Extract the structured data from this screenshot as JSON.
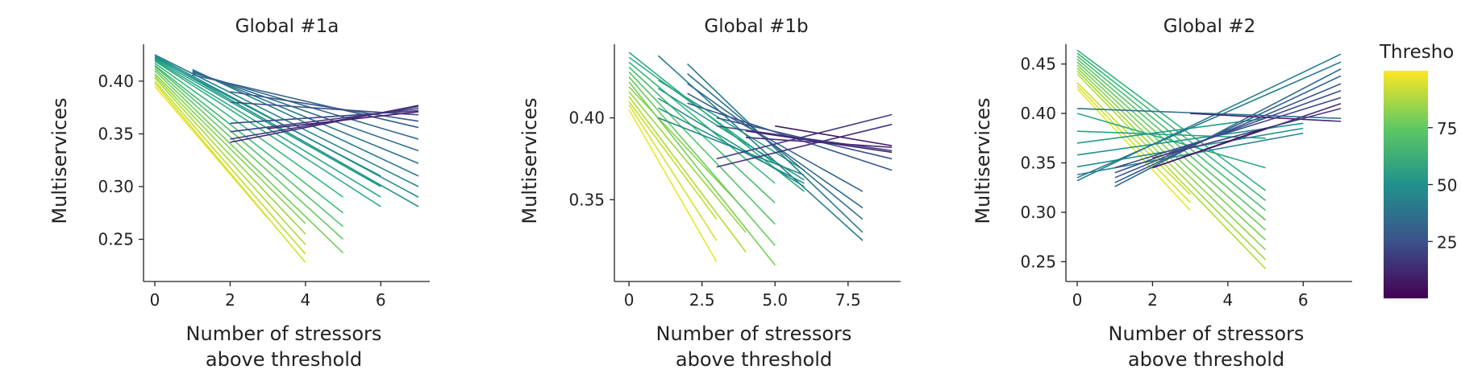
{
  "chart_data": [
    {
      "type": "line",
      "title": "Global #1a",
      "xlabel": [
        "Number of stressors",
        "above threshold"
      ],
      "ylabel": "Multiservices",
      "xlim": [
        -0.3,
        7.3
      ],
      "ylim": [
        0.21,
        0.435
      ],
      "xticks": [
        "0",
        "2",
        "4",
        "6"
      ],
      "xtick_values": [
        0,
        2,
        4,
        6
      ],
      "yticks": [
        "0.25",
        "0.30",
        "0.35",
        "0.40"
      ],
      "ytick_values": [
        0.25,
        0.3,
        0.35,
        0.4
      ],
      "series": [
        {
          "t": 0.97,
          "x": [
            0,
            3
          ],
          "y": [
            0.395,
            0.27
          ]
        },
        {
          "t": 0.93,
          "x": [
            0,
            4
          ],
          "y": [
            0.398,
            0.228
          ]
        },
        {
          "t": 0.9,
          "x": [
            0,
            4
          ],
          "y": [
            0.4,
            0.236
          ]
        },
        {
          "t": 0.87,
          "x": [
            0,
            4
          ],
          "y": [
            0.403,
            0.245
          ]
        },
        {
          "t": 0.84,
          "x": [
            0,
            4
          ],
          "y": [
            0.405,
            0.255
          ]
        },
        {
          "t": 0.81,
          "x": [
            0,
            4
          ],
          "y": [
            0.407,
            0.265
          ]
        },
        {
          "t": 0.78,
          "x": [
            0,
            5
          ],
          "y": [
            0.41,
            0.237
          ]
        },
        {
          "t": 0.75,
          "x": [
            0,
            5
          ],
          "y": [
            0.412,
            0.25
          ]
        },
        {
          "t": 0.72,
          "x": [
            0,
            5
          ],
          "y": [
            0.414,
            0.262
          ]
        },
        {
          "t": 0.69,
          "x": [
            0,
            5
          ],
          "y": [
            0.415,
            0.275
          ]
        },
        {
          "t": 0.66,
          "x": [
            0,
            5
          ],
          "y": [
            0.417,
            0.29
          ]
        },
        {
          "t": 0.63,
          "x": [
            0,
            6
          ],
          "y": [
            0.419,
            0.281
          ]
        },
        {
          "t": 0.6,
          "x": [
            0,
            6
          ],
          "y": [
            0.42,
            0.29
          ]
        },
        {
          "t": 0.57,
          "x": [
            0,
            6
          ],
          "y": [
            0.421,
            0.3
          ]
        },
        {
          "t": 0.54,
          "x": [
            0,
            6
          ],
          "y": [
            0.422,
            0.31
          ]
        },
        {
          "t": 0.51,
          "x": [
            0,
            7
          ],
          "y": [
            0.423,
            0.281
          ]
        },
        {
          "t": 0.48,
          "x": [
            0,
            7
          ],
          "y": [
            0.424,
            0.29
          ]
        },
        {
          "t": 0.45,
          "x": [
            0,
            7
          ],
          "y": [
            0.425,
            0.3
          ]
        },
        {
          "t": 0.42,
          "x": [
            1,
            7
          ],
          "y": [
            0.411,
            0.31
          ]
        },
        {
          "t": 0.39,
          "x": [
            1,
            7
          ],
          "y": [
            0.41,
            0.322
          ]
        },
        {
          "t": 0.36,
          "x": [
            1,
            7
          ],
          "y": [
            0.409,
            0.334
          ]
        },
        {
          "t": 0.33,
          "x": [
            1,
            7
          ],
          "y": [
            0.408,
            0.345
          ]
        },
        {
          "t": 0.3,
          "x": [
            1,
            7
          ],
          "y": [
            0.406,
            0.356
          ]
        },
        {
          "t": 0.27,
          "x": [
            2,
            7
          ],
          "y": [
            0.39,
            0.362
          ]
        },
        {
          "t": 0.24,
          "x": [
            2,
            7
          ],
          "y": [
            0.38,
            0.368
          ]
        },
        {
          "t": 0.21,
          "x": [
            2,
            7
          ],
          "y": [
            0.36,
            0.372
          ]
        },
        {
          "t": 0.18,
          "x": [
            2,
            7
          ],
          "y": [
            0.352,
            0.374
          ]
        },
        {
          "t": 0.15,
          "x": [
            2,
            7
          ],
          "y": [
            0.345,
            0.376
          ]
        },
        {
          "t": 0.12,
          "x": [
            2,
            7
          ],
          "y": [
            0.342,
            0.377
          ]
        },
        {
          "t": 0.08,
          "x": [
            3,
            7
          ],
          "y": [
            0.355,
            0.371
          ]
        }
      ]
    },
    {
      "type": "line",
      "title": "Global #1b",
      "xlabel": [
        "Number of stressors",
        "above threshold"
      ],
      "ylabel": "Multiservices",
      "xlim": [
        -0.5,
        9.3
      ],
      "ylim": [
        0.3,
        0.445
      ],
      "xticks": [
        "0",
        "2.5",
        "5.0",
        "7.5"
      ],
      "xtick_values": [
        0,
        2.5,
        5.0,
        7.5
      ],
      "yticks": [
        "0.35",
        "0.40"
      ],
      "ytick_values": [
        0.35,
        0.4
      ],
      "series": [
        {
          "t": 0.97,
          "x": [
            0,
            3
          ],
          "y": [
            0.405,
            0.312
          ]
        },
        {
          "t": 0.94,
          "x": [
            0,
            3
          ],
          "y": [
            0.408,
            0.325
          ]
        },
        {
          "t": 0.91,
          "x": [
            0,
            3
          ],
          "y": [
            0.41,
            0.338
          ]
        },
        {
          "t": 0.88,
          "x": [
            0,
            4
          ],
          "y": [
            0.413,
            0.318
          ]
        },
        {
          "t": 0.85,
          "x": [
            0,
            4
          ],
          "y": [
            0.416,
            0.33
          ]
        },
        {
          "t": 0.82,
          "x": [
            0,
            4
          ],
          "y": [
            0.419,
            0.343
          ]
        },
        {
          "t": 0.79,
          "x": [
            0,
            5
          ],
          "y": [
            0.422,
            0.31
          ]
        },
        {
          "t": 0.76,
          "x": [
            0,
            5
          ],
          "y": [
            0.425,
            0.322
          ]
        },
        {
          "t": 0.73,
          "x": [
            0,
            5
          ],
          "y": [
            0.428,
            0.335
          ]
        },
        {
          "t": 0.7,
          "x": [
            0,
            5
          ],
          "y": [
            0.431,
            0.348
          ]
        },
        {
          "t": 0.67,
          "x": [
            0,
            5
          ],
          "y": [
            0.434,
            0.36
          ]
        },
        {
          "t": 0.64,
          "x": [
            0,
            5
          ],
          "y": [
            0.437,
            0.372
          ]
        },
        {
          "t": 0.61,
          "x": [
            0,
            6
          ],
          "y": [
            0.44,
            0.355
          ]
        },
        {
          "t": 0.58,
          "x": [
            1,
            6
          ],
          "y": [
            0.423,
            0.368
          ]
        },
        {
          "t": 0.55,
          "x": [
            1,
            6
          ],
          "y": [
            0.418,
            0.362
          ]
        },
        {
          "t": 0.52,
          "x": [
            1,
            6
          ],
          "y": [
            0.412,
            0.358
          ]
        },
        {
          "t": 0.49,
          "x": [
            1,
            6
          ],
          "y": [
            0.406,
            0.36
          ]
        },
        {
          "t": 0.46,
          "x": [
            1,
            6
          ],
          "y": [
            0.4,
            0.365
          ]
        },
        {
          "t": 0.43,
          "x": [
            1,
            8
          ],
          "y": [
            0.438,
            0.325
          ]
        },
        {
          "t": 0.4,
          "x": [
            2,
            8
          ],
          "y": [
            0.433,
            0.33
          ]
        },
        {
          "t": 0.37,
          "x": [
            2,
            8
          ],
          "y": [
            0.427,
            0.338
          ]
        },
        {
          "t": 0.34,
          "x": [
            2,
            8
          ],
          "y": [
            0.421,
            0.345
          ]
        },
        {
          "t": 0.31,
          "x": [
            2,
            8
          ],
          "y": [
            0.415,
            0.355
          ]
        },
        {
          "t": 0.28,
          "x": [
            2,
            9
          ],
          "y": [
            0.409,
            0.368
          ]
        },
        {
          "t": 0.25,
          "x": [
            3,
            9
          ],
          "y": [
            0.4,
            0.375
          ]
        },
        {
          "t": 0.22,
          "x": [
            3,
            9
          ],
          "y": [
            0.395,
            0.38
          ]
        },
        {
          "t": 0.18,
          "x": [
            3,
            9
          ],
          "y": [
            0.375,
            0.402
          ]
        },
        {
          "t": 0.15,
          "x": [
            3,
            9
          ],
          "y": [
            0.37,
            0.396
          ]
        },
        {
          "t": 0.12,
          "x": [
            4,
            9
          ],
          "y": [
            0.388,
            0.382
          ]
        },
        {
          "t": 0.08,
          "x": [
            4,
            9
          ],
          "y": [
            0.392,
            0.379
          ]
        },
        {
          "t": 0.05,
          "x": [
            5,
            9
          ],
          "y": [
            0.395,
            0.383
          ]
        }
      ]
    },
    {
      "type": "line",
      "title": "Global #2",
      "xlabel": [
        "Number of stressors",
        "above threshold"
      ],
      "ylabel": "Multiservices",
      "xlim": [
        -0.3,
        7.3
      ],
      "ylim": [
        0.23,
        0.47
      ],
      "xticks": [
        "0",
        "2",
        "4",
        "6"
      ],
      "xtick_values": [
        0,
        2,
        4,
        6
      ],
      "yticks": [
        "0.25",
        "0.30",
        "0.35",
        "0.40",
        "0.45"
      ],
      "ytick_values": [
        0.25,
        0.3,
        0.35,
        0.4,
        0.45
      ],
      "series": [
        {
          "t": 0.97,
          "x": [
            0,
            3
          ],
          "y": [
            0.425,
            0.302
          ]
        },
        {
          "t": 0.94,
          "x": [
            0,
            3
          ],
          "y": [
            0.428,
            0.31
          ]
        },
        {
          "t": 0.91,
          "x": [
            0,
            3
          ],
          "y": [
            0.431,
            0.318
          ]
        },
        {
          "t": 0.88,
          "x": [
            0,
            5
          ],
          "y": [
            0.44,
            0.243
          ]
        },
        {
          "t": 0.85,
          "x": [
            0,
            5
          ],
          "y": [
            0.443,
            0.252
          ]
        },
        {
          "t": 0.82,
          "x": [
            0,
            5
          ],
          "y": [
            0.446,
            0.262
          ]
        },
        {
          "t": 0.79,
          "x": [
            0,
            5
          ],
          "y": [
            0.449,
            0.272
          ]
        },
        {
          "t": 0.76,
          "x": [
            0,
            5
          ],
          "y": [
            0.452,
            0.282
          ]
        },
        {
          "t": 0.73,
          "x": [
            0,
            5
          ],
          "y": [
            0.455,
            0.292
          ]
        },
        {
          "t": 0.7,
          "x": [
            0,
            5
          ],
          "y": [
            0.458,
            0.302
          ]
        },
        {
          "t": 0.67,
          "x": [
            0,
            5
          ],
          "y": [
            0.461,
            0.312
          ]
        },
        {
          "t": 0.64,
          "x": [
            0,
            5
          ],
          "y": [
            0.464,
            0.322
          ]
        },
        {
          "t": 0.61,
          "x": [
            0,
            5
          ],
          "y": [
            0.4,
            0.345
          ]
        },
        {
          "t": 0.58,
          "x": [
            0,
            5
          ],
          "y": [
            0.382,
            0.375
          ]
        },
        {
          "t": 0.55,
          "x": [
            0,
            5
          ],
          "y": [
            0.37,
            0.395
          ]
        },
        {
          "t": 0.52,
          "x": [
            0,
            6
          ],
          "y": [
            0.358,
            0.39
          ]
        },
        {
          "t": 0.49,
          "x": [
            0,
            6
          ],
          "y": [
            0.346,
            0.385
          ]
        },
        {
          "t": 0.46,
          "x": [
            0,
            6
          ],
          "y": [
            0.338,
            0.38
          ]
        },
        {
          "t": 0.43,
          "x": [
            0,
            7
          ],
          "y": [
            0.332,
            0.46
          ]
        },
        {
          "t": 0.4,
          "x": [
            0,
            7
          ],
          "y": [
            0.335,
            0.452
          ]
        },
        {
          "t": 0.37,
          "x": [
            0,
            7
          ],
          "y": [
            0.405,
            0.395
          ]
        },
        {
          "t": 0.34,
          "x": [
            1,
            7
          ],
          "y": [
            0.326,
            0.445
          ]
        },
        {
          "t": 0.31,
          "x": [
            1,
            7
          ],
          "y": [
            0.33,
            0.438
          ]
        },
        {
          "t": 0.28,
          "x": [
            1,
            7
          ],
          "y": [
            0.335,
            0.43
          ]
        },
        {
          "t": 0.25,
          "x": [
            1,
            7
          ],
          "y": [
            0.34,
            0.423
          ]
        },
        {
          "t": 0.22,
          "x": [
            1,
            7
          ],
          "y": [
            0.345,
            0.416
          ]
        },
        {
          "t": 0.18,
          "x": [
            2,
            7
          ],
          "y": [
            0.355,
            0.405
          ]
        },
        {
          "t": 0.14,
          "x": [
            2,
            7
          ],
          "y": [
            0.345,
            0.41
          ]
        },
        {
          "t": 0.1,
          "x": [
            3,
            7
          ],
          "y": [
            0.4,
            0.392
          ]
        },
        {
          "t": 0.06,
          "x": [
            2,
            5
          ],
          "y": [
            0.345,
            0.385
          ]
        }
      ]
    }
  ],
  "colorbar": {
    "title": "Thresho",
    "ticks": [
      "75",
      "50",
      "25"
    ],
    "tick_values": [
      75,
      50,
      25
    ],
    "range": [
      0,
      100
    ],
    "colormap": "viridis"
  }
}
